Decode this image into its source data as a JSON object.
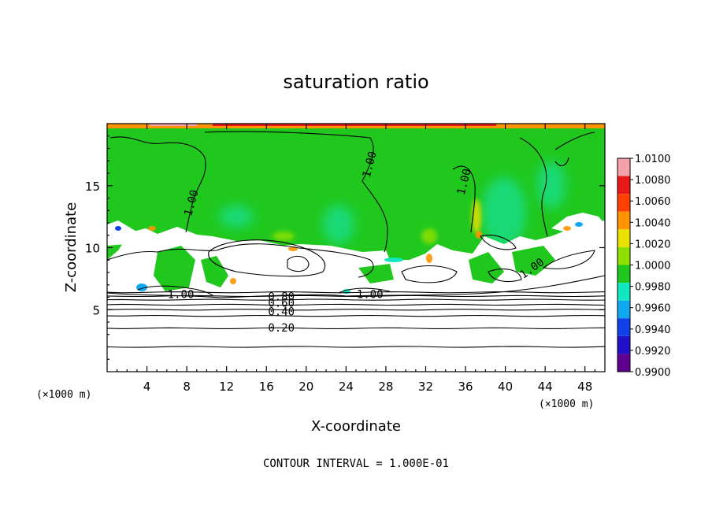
{
  "chart_data": {
    "type": "heatmap",
    "title": "saturation ratio",
    "xlabel": "X-coordinate",
    "ylabel": "Z-coordinate",
    "x_unit_note": "(×1000 m)",
    "z_unit_note": "(×1000 m)",
    "footer": "CONTOUR INTERVAL = 1.000E-01",
    "xlim": [
      0,
      50
    ],
    "ylim": [
      0,
      20
    ],
    "x_ticks": [
      4,
      8,
      12,
      16,
      20,
      24,
      28,
      32,
      36,
      40,
      44,
      48
    ],
    "y_ticks": [
      5,
      10,
      15
    ],
    "colorbar": {
      "levels": [
        "1.0100",
        "1.0080",
        "1.0060",
        "1.0040",
        "1.0020",
        "1.0000",
        "0.9980",
        "0.9960",
        "0.9940",
        "0.9920",
        "0.9900"
      ],
      "colors": [
        "#f4a0a8",
        "#e81818",
        "#ff4000",
        "#ff9400",
        "#e8e000",
        "#8ee000",
        "#20c81e",
        "#12e8c0",
        "#10a8f0",
        "#1040e8",
        "#2010c8",
        "#600090"
      ]
    },
    "contour_labels": [
      {
        "text": "1.00",
        "x": 8.5,
        "z": 13.6
      },
      {
        "text": "1.00",
        "x": 26.4,
        "z": 16.7
      },
      {
        "text": "1.00",
        "x": 35.9,
        "z": 15.3
      },
      {
        "text": "1.00",
        "x": 42.7,
        "z": 8.3
      },
      {
        "text": "1.00",
        "x": 7.4,
        "z": 6.2
      },
      {
        "text": "1.00",
        "x": 26.4,
        "z": 6.2
      },
      {
        "text": "0.80",
        "x": 17.5,
        "z": 6.0
      },
      {
        "text": "0.60",
        "x": 17.5,
        "z": 5.5
      },
      {
        "text": "0.40",
        "x": 17.5,
        "z": 4.8
      },
      {
        "text": "0.20",
        "x": 17.5,
        "z": 3.5
      }
    ],
    "horizontal_contour_heights": [
      2.0,
      3.5,
      4.5,
      5.0,
      5.4,
      5.8,
      6.1,
      6.4
    ]
  }
}
